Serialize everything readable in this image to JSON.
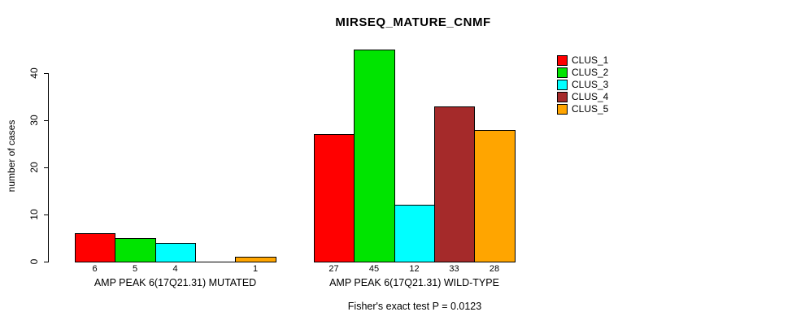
{
  "chart_data": {
    "type": "bar",
    "title": "MIRSEQ_MATURE_CNMF",
    "ylabel": "number of cases",
    "xlabel": "",
    "ylim": [
      0,
      45
    ],
    "yticks": [
      0,
      10,
      20,
      30,
      40
    ],
    "grid": false,
    "legend_position": "top-right",
    "legend": [
      {
        "label": "CLUS_1",
        "color": "#FF0000"
      },
      {
        "label": "CLUS_2",
        "color": "#00E400"
      },
      {
        "label": "CLUS_3",
        "color": "#00FFFF"
      },
      {
        "label": "CLUS_4",
        "color": "#A52A2A"
      },
      {
        "label": "CLUS_5",
        "color": "#FFA500"
      }
    ],
    "series_colors": [
      "#FF0000",
      "#00E400",
      "#00FFFF",
      "#A52A2A",
      "#FFA500"
    ],
    "groups": [
      {
        "label": "AMP PEAK 6(17Q21.31) MUTATED",
        "values": [
          6,
          5,
          4,
          0,
          1
        ],
        "bar_labels": [
          "6",
          "5",
          "4",
          "",
          "1"
        ]
      },
      {
        "label": "AMP PEAK 6(17Q21.31) WILD-TYPE",
        "values": [
          27,
          45,
          12,
          33,
          28
        ],
        "bar_labels": [
          "27",
          "45",
          "12",
          "33",
          "28"
        ]
      }
    ],
    "annotation": "Fisher's exact test P = 0.0123"
  },
  "colors": {
    "background": "#FFFFFF",
    "axis": "#000000",
    "text": "#000000"
  }
}
